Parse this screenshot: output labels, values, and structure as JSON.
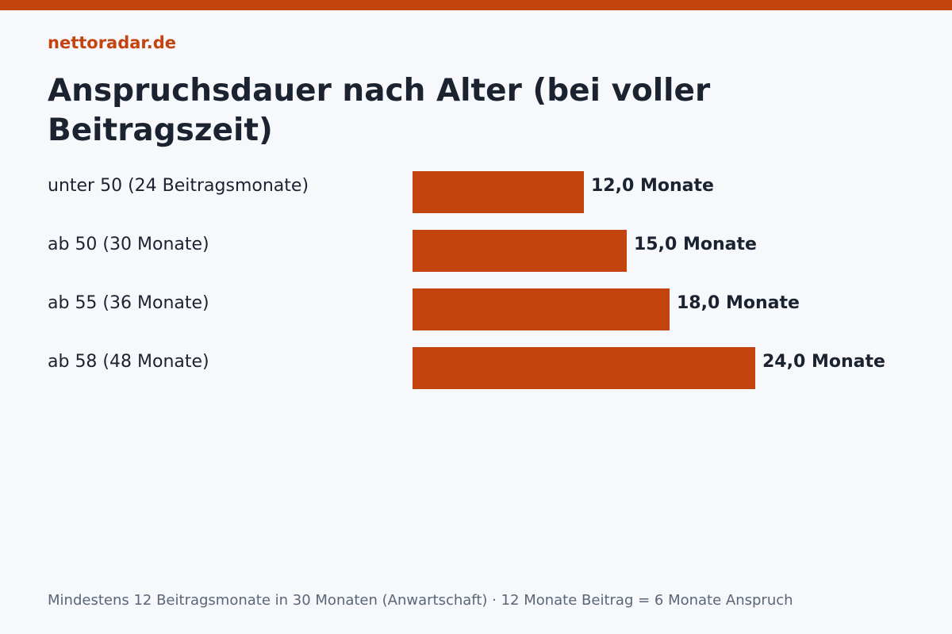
{
  "brand": "nettoradar.de",
  "accent_color": "#c4440f",
  "chart_data": {
    "type": "bar",
    "orientation": "horizontal",
    "title": "Anspruchsdauer nach Alter (bei voller Beitragszeit)",
    "categories": [
      "unter 50 (24 Beitragsmonate)",
      "ab 50 (30 Monate)",
      "ab 55 (36 Monate)",
      "ab 58 (48 Monate)"
    ],
    "values": [
      12,
      15,
      18,
      24
    ],
    "value_labels": [
      "12,0 Monate",
      "15,0 Monate",
      "18,0 Monate",
      "24,0 Monate"
    ],
    "unit": "Monate",
    "xlim": [
      0,
      24
    ],
    "grid": false,
    "legend": "none",
    "bar_color": "#c4440f"
  },
  "footnote": "Mindestens 12 Beitragsmonate in 30 Monaten (Anwartschaft) · 12 Monate Beitrag = 6 Monate Anspruch"
}
